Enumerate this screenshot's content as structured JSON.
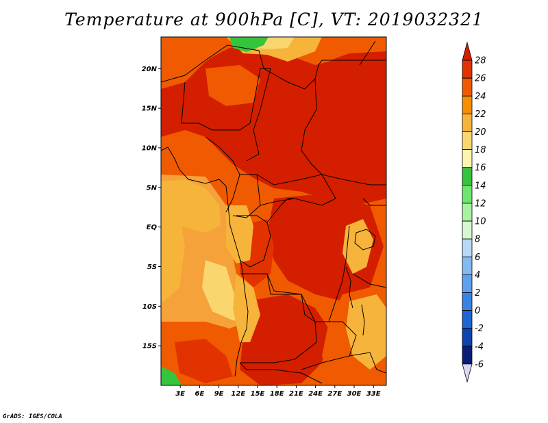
{
  "title": "Temperature at 900hPa [C], VT: 2019032321",
  "credit": "GrADS: IGES/COLA",
  "map": {
    "lon_range": [
      0,
      35
    ],
    "lat_range": [
      -20,
      24
    ],
    "lat_ticks": [
      {
        "value": 20,
        "label": "20N"
      },
      {
        "value": 15,
        "label": "15N"
      },
      {
        "value": 10,
        "label": "10N"
      },
      {
        "value": 5,
        "label": "5N"
      },
      {
        "value": 0,
        "label": "EQ"
      },
      {
        "value": -5,
        "label": "5S"
      },
      {
        "value": -10,
        "label": "10S"
      },
      {
        "value": -15,
        "label": "15S"
      }
    ],
    "lon_ticks": [
      {
        "value": 3,
        "label": "3E"
      },
      {
        "value": 6,
        "label": "6E"
      },
      {
        "value": 9,
        "label": "9E"
      },
      {
        "value": 12,
        "label": "12E"
      },
      {
        "value": 15,
        "label": "15E"
      },
      {
        "value": 18,
        "label": "18E"
      },
      {
        "value": 21,
        "label": "21E"
      },
      {
        "value": 24,
        "label": "24E"
      },
      {
        "value": 27,
        "label": "27E"
      },
      {
        "value": 30,
        "label": "30E"
      },
      {
        "value": 33,
        "label": "33E"
      }
    ]
  },
  "colorbar": {
    "labels": [
      "28",
      "26",
      "24",
      "22",
      "20",
      "18",
      "16",
      "14",
      "12",
      "10",
      "8",
      "6",
      "4",
      "2",
      "0",
      "-2",
      "-4",
      "-6"
    ],
    "colors_top_to_bottom": [
      "#d41e00",
      "#e23200",
      "#f05a00",
      "#f58f00",
      "#f6b43a",
      "#f9d76e",
      "#fdf4b0",
      "#35c53d",
      "#6ee66d",
      "#a7f3a0",
      "#d6f8d1",
      "#b8d8f5",
      "#82baf1",
      "#5ea0ee",
      "#3883e6",
      "#1c66d4",
      "#0e44ae",
      "#0a1e78",
      "#d9d9f4"
    ]
  }
}
